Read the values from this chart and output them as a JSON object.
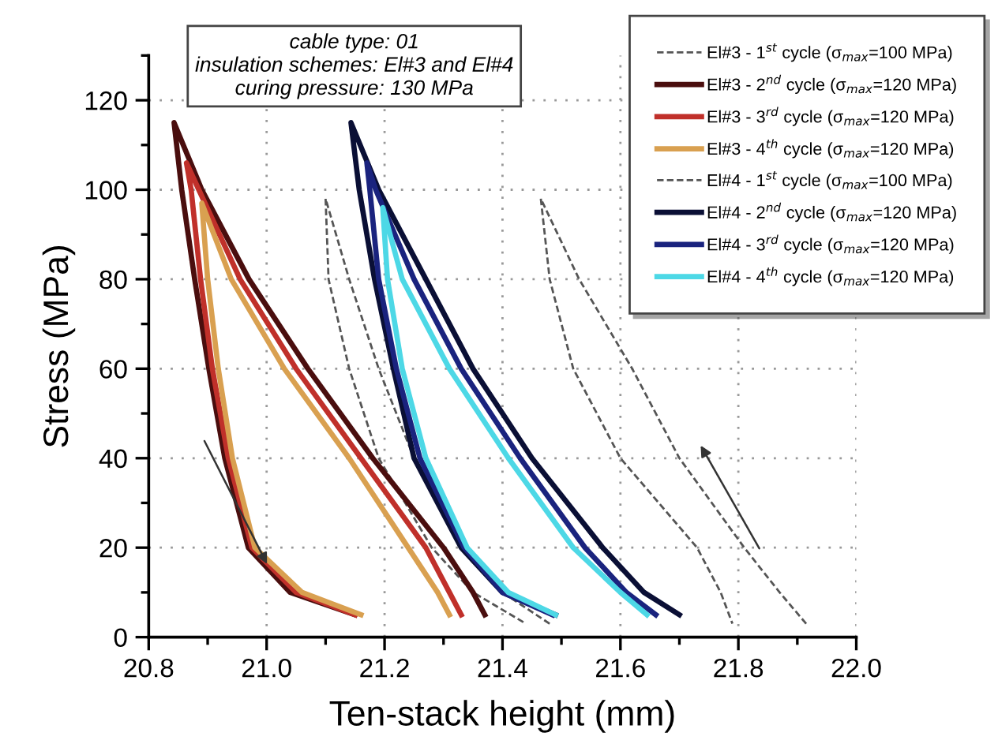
{
  "chart_data": {
    "type": "line",
    "xlabel": "Ten-stack height (mm)",
    "ylabel": "Stress (MPa)",
    "xlim": [
      20.8,
      22.0
    ],
    "xticks": [
      {
        "value": 20.8,
        "label": "20.8"
      },
      {
        "value": 21.0,
        "label": "21.0"
      },
      {
        "value": 21.2,
        "label": "21.2"
      },
      {
        "value": 21.4,
        "label": "21.4"
      },
      {
        "value": 21.6,
        "label": "21.6"
      },
      {
        "value": 21.8,
        "label": "21.8"
      },
      {
        "value": 22.0,
        "label": "22.0"
      }
    ],
    "ylim": [
      0,
      130
    ],
    "yticks": [
      0,
      20,
      40,
      60,
      80,
      100,
      120
    ],
    "grid": true,
    "legend": "top right",
    "annotations": [
      "cable type: 01",
      "insulation schemes: El#3 and El#4",
      "curing pressure: 130 MPa"
    ],
    "series": [
      {
        "name": "El#3 - 1$^{st}$ cycle (σ$_{max}$=100 MPa)",
        "color": "#555555",
        "line_style": "dashed",
        "x": [
          21.48,
          21.4,
          21.33,
          21.25,
          21.19,
          21.14,
          21.1,
          21.105,
          21.14,
          21.19,
          21.28,
          21.35,
          21.44
        ],
        "values": [
          3,
          10,
          20,
          40,
          60,
          80,
          98,
          80,
          60,
          40,
          20,
          10,
          3
        ]
      },
      {
        "name": "El#3 - 2$^{nd}$ cycle (σ$_{max}$=120 MPa)",
        "color": "#4a0e0e",
        "line_style": "solid",
        "x": [
          21.37,
          21.35,
          21.3,
          21.18,
          21.07,
          20.97,
          20.89,
          20.843,
          20.856,
          20.878,
          20.902,
          20.929,
          20.969,
          21.04,
          21.15
        ],
        "values": [
          5,
          10,
          20,
          40,
          60,
          80,
          100,
          115,
          100,
          80,
          60,
          40,
          20,
          10,
          5
        ]
      },
      {
        "name": "El#3 - 3$^{rd}$ cycle (σ$_{max}$=120 MPa)",
        "color": "#c0302a",
        "line_style": "solid",
        "x": [
          21.33,
          21.31,
          21.27,
          21.16,
          21.05,
          20.955,
          20.885,
          20.864,
          20.872,
          20.888,
          20.908,
          20.935,
          20.975,
          21.05,
          21.15
        ],
        "values": [
          5,
          10,
          20,
          40,
          60,
          80,
          100,
          106,
          100,
          80,
          60,
          40,
          20,
          10,
          5
        ]
      },
      {
        "name": "El#3 - 4$^{th}$ cycle (σ$_{max}$=120 MPa)",
        "color": "#d9a050",
        "line_style": "solid",
        "x": [
          21.31,
          21.29,
          21.24,
          21.14,
          21.03,
          20.94,
          20.89,
          20.9,
          20.918,
          20.942,
          20.98,
          21.06,
          21.16
        ],
        "values": [
          5,
          10,
          20,
          40,
          60,
          80,
          97,
          80,
          60,
          40,
          20,
          10,
          5
        ]
      },
      {
        "name": "El#4 - 1$^{st}$ cycle (σ$_{max}$=100 MPa)",
        "color": "#555555",
        "line_style": "dashed",
        "x": [
          21.915,
          21.87,
          21.81,
          21.7,
          21.62,
          21.53,
          21.465,
          21.48,
          21.52,
          21.6,
          21.73,
          21.77,
          21.79
        ],
        "values": [
          3,
          10,
          20,
          40,
          60,
          80,
          98,
          80,
          60,
          40,
          20,
          10,
          3
        ]
      },
      {
        "name": "El#4 - 2$^{nd}$ cycle (σ$_{max}$=120 MPa)",
        "color": "#0a0f35",
        "line_style": "solid",
        "x": [
          21.7,
          21.64,
          21.57,
          21.45,
          21.35,
          21.27,
          21.19,
          21.143,
          21.157,
          21.183,
          21.215,
          21.25,
          21.33,
          21.4,
          21.49
        ],
        "values": [
          5,
          10,
          20,
          40,
          60,
          80,
          100,
          115,
          100,
          80,
          60,
          40,
          20,
          10,
          5
        ]
      },
      {
        "name": "El#4 - 3$^{rd}$ cycle (σ$_{max}$=120 MPa)",
        "color": "#1a237e",
        "line_style": "solid",
        "x": [
          21.66,
          21.61,
          21.54,
          21.43,
          21.33,
          21.25,
          21.185,
          21.17,
          21.175,
          21.19,
          21.22,
          21.26,
          21.335,
          21.4,
          21.485
        ],
        "values": [
          5,
          10,
          20,
          40,
          60,
          80,
          100,
          106,
          100,
          80,
          60,
          40,
          20,
          10,
          5
        ]
      },
      {
        "name": "El#4 - 4$^{th}$ cycle (σ$_{max}$=120 MPa)",
        "color": "#4dd8e6",
        "line_style": "solid",
        "x": [
          21.645,
          21.6,
          21.52,
          21.41,
          21.31,
          21.23,
          21.197,
          21.205,
          21.23,
          21.27,
          21.34,
          21.41,
          21.49
        ],
        "values": [
          5,
          10,
          20,
          40,
          60,
          80,
          96,
          80,
          60,
          40,
          20,
          10,
          5
        ]
      }
    ]
  }
}
